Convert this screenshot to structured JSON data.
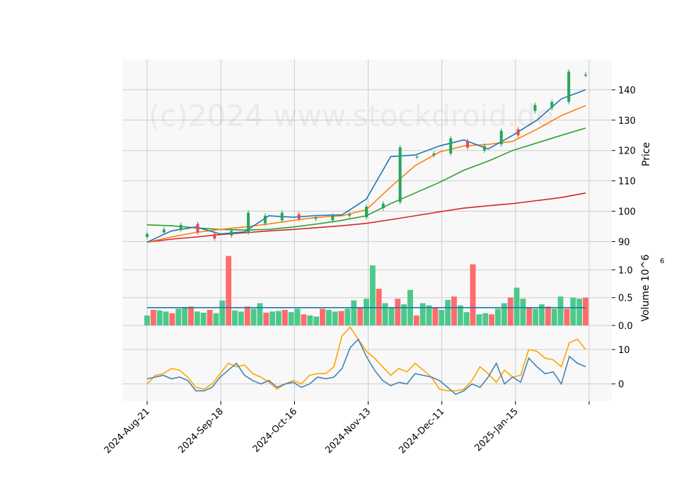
{
  "watermark": "(c)2024 www.stockdroid.de",
  "colors": {
    "up": "#26a65b",
    "down": "#e8474c",
    "up_volume": "#4cc98a",
    "down_volume": "#ff6b6b",
    "ma_fast": "#1f77b4",
    "ma_mid": "#ff7f0e",
    "ma_slow": "#2ca02c",
    "ma_long": "#d62728",
    "vol_avg": "#1f77b4",
    "osc_fast": "#4682b4",
    "osc_slow": "#ffa500",
    "panel_bg": "#f8f8f8",
    "grid": "#cccccc"
  },
  "chart_data": [
    {
      "type": "candlestick",
      "ylabel": "Price",
      "ylim": [
        88,
        150
      ],
      "yticks": [
        90,
        100,
        110,
        120,
        130,
        140
      ],
      "grid": true,
      "x_dates": [
        "2024-Aug-21",
        "2024-Sep-18",
        "2024-Oct-16",
        "2024-Nov-13",
        "2024-Dec-11",
        "2025-Jan-15"
      ],
      "ma_fast": [
        89.8,
        93.5,
        94.8,
        92.5,
        93.2,
        98.5,
        98.0,
        98.6,
        98.8,
        104.0,
        118.0,
        118.5,
        121.5,
        123.5,
        120.5,
        125.0,
        130.0,
        137.0,
        140.0
      ],
      "ma_mid": [
        89.8,
        91.5,
        93.0,
        94.0,
        94.8,
        95.8,
        97.0,
        98.0,
        98.5,
        100.5,
        108.0,
        115.0,
        119.5,
        121.5,
        122.0,
        123.0,
        127.0,
        131.5,
        134.8
      ],
      "ma_slow": [
        95.5,
        95.2,
        94.5,
        94.0,
        93.8,
        94.0,
        94.8,
        95.8,
        97.0,
        98.5,
        102.5,
        106.0,
        109.5,
        113.5,
        116.5,
        120.0,
        122.5,
        125.0,
        127.4
      ],
      "ma_long": [
        89.8,
        90.8,
        91.5,
        92.3,
        92.9,
        93.5,
        94.0,
        94.6,
        95.2,
        96.0,
        97.2,
        98.5,
        99.8,
        101.0,
        101.8,
        102.5,
        103.5,
        104.5,
        106.0
      ],
      "candles_open": [
        91.5,
        93.0,
        94.0,
        95.8,
        92.5,
        92.0,
        93.0,
        96.0,
        97.0,
        99.0,
        97.5,
        97.0,
        98.5,
        98.0,
        101.0,
        103.0,
        118.0,
        118.5,
        119.0,
        123.0,
        120.0,
        122.0,
        127.0,
        133.0,
        134.0,
        136.0,
        145.0
      ],
      "candles_close": [
        92.5,
        94.0,
        95.5,
        93.0,
        91.0,
        93.5,
        99.5,
        98.5,
        99.5,
        97.5,
        98.0,
        98.5,
        99.0,
        101.5,
        102.5,
        121.0,
        118.0,
        119.0,
        124.0,
        121.0,
        121.5,
        126.5,
        125.0,
        135.0,
        136.0,
        146.0,
        145.0
      ]
    },
    {
      "type": "bar",
      "ylabel": "Volume  10^6",
      "ylim": [
        0,
        1.4
      ],
      "yticks": [
        "0.0",
        "0.5",
        "1.0"
      ],
      "volume_avg": 0.32,
      "volume_values": [
        0.18,
        0.28,
        0.27,
        0.25,
        0.22,
        0.3,
        0.32,
        0.34,
        0.25,
        0.23,
        0.28,
        0.22,
        0.45,
        1.25,
        0.27,
        0.25,
        0.34,
        0.3,
        0.4,
        0.23,
        0.25,
        0.26,
        0.28,
        0.24,
        0.3,
        0.2,
        0.18,
        0.16,
        0.3,
        0.28,
        0.25,
        0.26,
        0.3,
        0.45,
        0.32,
        0.48,
        1.08,
        0.66,
        0.4,
        0.32,
        0.48,
        0.38,
        0.64,
        0.18,
        0.4,
        0.36,
        0.32,
        0.28,
        0.46,
        0.52,
        0.36,
        0.24,
        1.1,
        0.2,
        0.22,
        0.2,
        0.3,
        0.4,
        0.5,
        0.68,
        0.48,
        0.32,
        0.3,
        0.38,
        0.34,
        0.3,
        0.52,
        0.3,
        0.5,
        0.48,
        0.5
      ]
    },
    {
      "type": "line",
      "ylim": [
        -5,
        17
      ],
      "yticks": [
        "0",
        "10"
      ],
      "osc_fast": [
        1.5,
        2.0,
        2.5,
        1.5,
        2.0,
        1.0,
        -2.0,
        -2.0,
        -1.0,
        2.0,
        4.0,
        6.0,
        2.5,
        1.0,
        0.0,
        1.0,
        -1.0,
        0.0,
        0.5,
        -1.0,
        0.0,
        2.0,
        1.5,
        2.0,
        4.5,
        10.5,
        13.0,
        8.0,
        4.0,
        1.0,
        -0.5,
        0.5,
        0.0,
        3.0,
        2.5,
        2.0,
        1.0,
        -1.0,
        -3.0,
        -2.0,
        0.0,
        -1.0,
        2.0,
        6.0,
        0.0,
        2.0,
        0.5,
        7.5,
        5.0,
        3.0,
        3.5,
        0.0,
        8.0,
        6.0,
        5.0
      ],
      "osc_slow": [
        0.0,
        2.5,
        3.0,
        4.5,
        4.0,
        2.0,
        -1.0,
        -1.5,
        0.0,
        3.0,
        6.0,
        5.0,
        5.5,
        3.0,
        2.0,
        0.5,
        -1.5,
        0.0,
        1.0,
        0.0,
        2.5,
        3.0,
        3.0,
        5.0,
        14.0,
        16.5,
        13.0,
        9.5,
        7.5,
        5.0,
        2.5,
        4.5,
        3.5,
        6.0,
        4.0,
        2.0,
        -1.5,
        -2.0,
        -2.0,
        -1.5,
        1.0,
        5.0,
        3.0,
        0.5,
        4.0,
        2.0,
        2.5,
        10.0,
        9.5,
        7.5,
        7.0,
        5.0,
        12.0,
        13.0,
        10.0
      ]
    }
  ]
}
